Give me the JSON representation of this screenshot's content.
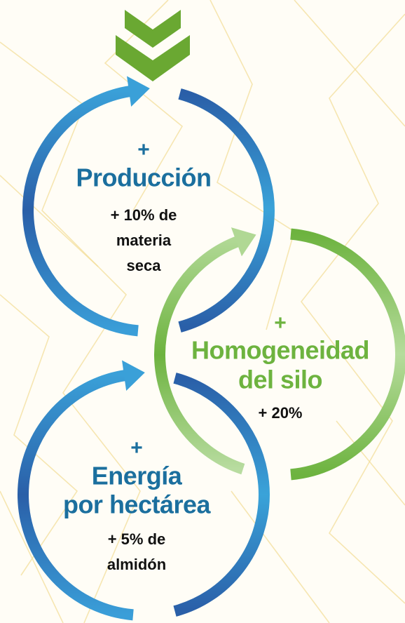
{
  "items": [
    {
      "plus": "+",
      "title": [
        "Producción"
      ],
      "detail": [
        "+ 10% de",
        "materia",
        "seca"
      ]
    },
    {
      "plus": "+",
      "title": [
        "Homogeneidad",
        "del silo"
      ],
      "detail": [
        "+ 20%"
      ]
    },
    {
      "plus": "+",
      "title": [
        "Energía",
        "por hectárea"
      ],
      "detail": [
        "+ 5% de",
        "almidón"
      ]
    }
  ]
}
